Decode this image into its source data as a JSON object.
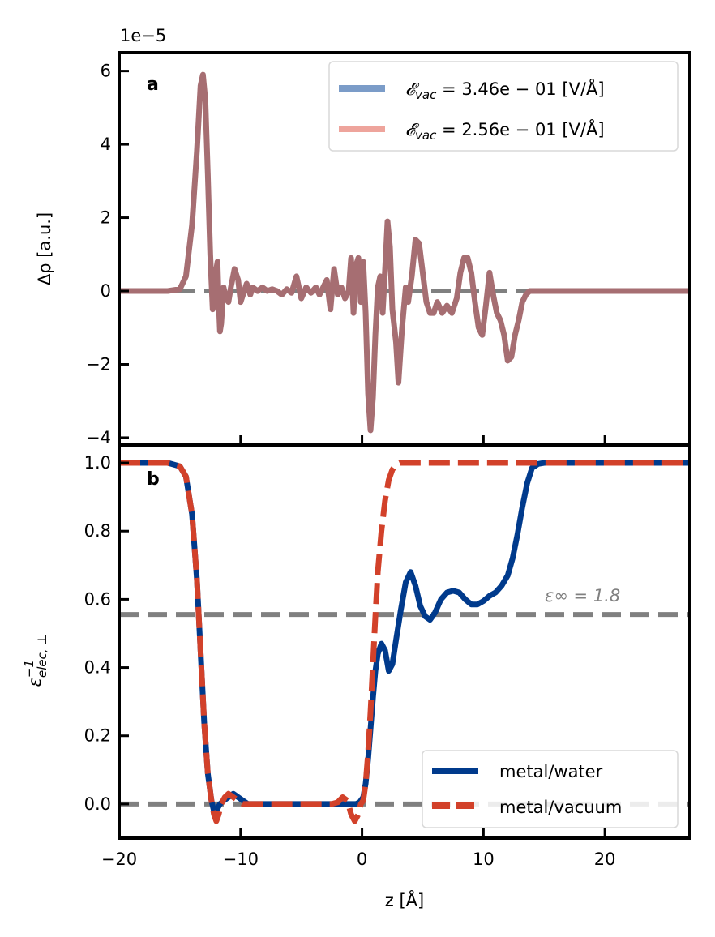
{
  "chart_data": [
    {
      "panel": "a",
      "type": "line",
      "offset_label": "1e−5",
      "xlim": [
        -20,
        27
      ],
      "ylim": [
        -4.2,
        6.5
      ],
      "yticks": [
        -4,
        -2,
        0,
        2,
        4,
        6
      ],
      "ytick_labels": [
        "−4",
        "−2",
        "0",
        "2",
        "4",
        "6"
      ],
      "xticks": [
        -10,
        0,
        10,
        20
      ],
      "ylabel": "Δρ [a.u.]",
      "legend_position": "top-right",
      "series": [
        {
          "name": "𝓔_vac = 3.46e − 01 [V/Å]",
          "color": "#7b9cc8",
          "x": [
            -20,
            -16,
            -15,
            -14.5,
            -14,
            -13.6,
            -13.3,
            -13.1,
            -12.9,
            -12.7,
            -12.5,
            -12.3,
            -12.1,
            -12.0,
            -11.9,
            -11.8,
            -11.7,
            -11.6,
            -11.4,
            -11.2,
            -11.0,
            -10.8,
            -10.5,
            -10.2,
            -10.0,
            -9.8,
            -9.5,
            -9.2,
            -9.0,
            -8.6,
            -8.2,
            -7.8,
            -7.4,
            -7.0,
            -6.6,
            -6.2,
            -5.8,
            -5.4,
            -5.0,
            -4.6,
            -4.2,
            -3.8,
            -3.5,
            -3.2,
            -2.9,
            -2.6,
            -2.3,
            -2.0,
            -1.7,
            -1.4,
            -1.1,
            -0.9,
            -0.7,
            -0.5,
            -0.3,
            -0.1,
            0.1,
            0.3,
            0.5,
            0.7,
            0.9,
            1.1,
            1.3,
            1.5,
            1.7,
            1.9,
            2.1,
            2.3,
            2.5,
            2.8,
            3.0,
            3.3,
            3.6,
            3.8,
            4.1,
            4.4,
            4.7,
            5.0,
            5.3,
            5.6,
            5.9,
            6.2,
            6.6,
            7.0,
            7.4,
            7.8,
            8.1,
            8.4,
            8.7,
            9.0,
            9.3,
            9.6,
            9.9,
            10.2,
            10.5,
            10.8,
            11.1,
            11.4,
            11.7,
            12.0,
            12.3,
            12.6,
            12.9,
            13.2,
            13.5,
            13.8,
            14.2,
            14.7,
            15.3,
            16,
            27
          ],
          "y": [
            0,
            0,
            0.05,
            0.4,
            1.8,
            3.8,
            5.6,
            5.9,
            5.2,
            3.2,
            1.0,
            -0.5,
            -0.2,
            0.6,
            0.8,
            -0.3,
            -1.1,
            -0.9,
            0.1,
            -0.2,
            -0.3,
            0.1,
            0.6,
            0.3,
            -0.3,
            -0.1,
            0.2,
            -0.1,
            0.1,
            0.0,
            0.1,
            0.0,
            0.05,
            0.0,
            -0.1,
            0.05,
            -0.05,
            0.4,
            -0.2,
            0.1,
            -0.05,
            0.1,
            -0.1,
            0.1,
            0.3,
            -0.5,
            0.6,
            -0.1,
            0.1,
            -0.2,
            0.0,
            0.9,
            -0.6,
            0.7,
            0.9,
            -0.3,
            0.8,
            -0.6,
            -2.8,
            -3.8,
            -2.9,
            -1.2,
            0.1,
            0.4,
            -0.6,
            0.6,
            1.9,
            1.2,
            -0.5,
            -1.4,
            -2.5,
            -1.0,
            0.1,
            -0.3,
            0.4,
            1.4,
            1.3,
            0.5,
            -0.3,
            -0.6,
            -0.6,
            -0.3,
            -0.6,
            -0.4,
            -0.6,
            -0.2,
            0.5,
            0.9,
            0.9,
            0.5,
            -0.3,
            -1.0,
            -1.2,
            -0.4,
            0.5,
            -0.1,
            -0.6,
            -0.8,
            -1.2,
            -1.9,
            -1.8,
            -1.2,
            -0.8,
            -0.3,
            -0.1,
            0.0,
            0.0,
            0.0,
            0.0,
            0.0,
            0.0
          ]
        },
        {
          "name": "𝓔_vac = 2.56e − 01 [V/Å]",
          "color": "#eea49c",
          "x": [
            -20,
            -16,
            -15,
            -14.5,
            -14,
            -13.6,
            -13.3,
            -13.1,
            -12.9,
            -12.7,
            -12.5,
            -12.3,
            -12.1,
            -12.0,
            -11.9,
            -11.8,
            -11.7,
            -11.6,
            -11.4,
            -11.2,
            -11.0,
            -10.8,
            -10.5,
            -10.2,
            -10.0,
            -9.8,
            -9.5,
            -9.2,
            -9.0,
            -8.6,
            -8.2,
            -7.8,
            -7.4,
            -7.0,
            -6.6,
            -6.2,
            -5.8,
            -5.4,
            -5.0,
            -4.6,
            -4.2,
            -3.8,
            -3.5,
            -3.2,
            -2.9,
            -2.6,
            -2.3,
            -2.0,
            -1.7,
            -1.4,
            -1.1,
            -0.9,
            -0.7,
            -0.5,
            -0.3,
            -0.1,
            0.1,
            0.3,
            0.5,
            0.7,
            0.9,
            1.1,
            1.3,
            1.5,
            1.7,
            1.9,
            2.1,
            2.3,
            2.5,
            2.8,
            3.0,
            3.3,
            3.6,
            3.8,
            4.1,
            4.4,
            4.7,
            5.0,
            5.3,
            5.6,
            5.9,
            6.2,
            6.6,
            7.0,
            7.4,
            7.8,
            8.1,
            8.4,
            8.7,
            9.0,
            9.3,
            9.6,
            9.9,
            10.2,
            10.5,
            10.8,
            11.1,
            11.4,
            11.7,
            12.0,
            12.3,
            12.6,
            12.9,
            13.2,
            13.5,
            13.8,
            14.2,
            14.7,
            15.3,
            16,
            27
          ],
          "y": [
            0,
            0,
            0.05,
            0.4,
            1.8,
            3.8,
            5.6,
            5.9,
            5.2,
            3.2,
            1.0,
            -0.5,
            -0.2,
            0.6,
            0.8,
            -0.3,
            -1.1,
            -0.9,
            0.1,
            -0.2,
            -0.3,
            0.1,
            0.6,
            0.3,
            -0.3,
            -0.1,
            0.2,
            -0.1,
            0.1,
            0.0,
            0.1,
            0.0,
            0.05,
            0.0,
            -0.1,
            0.05,
            -0.05,
            0.4,
            -0.2,
            0.1,
            -0.05,
            0.1,
            -0.1,
            0.1,
            0.3,
            -0.5,
            0.6,
            -0.1,
            0.1,
            -0.2,
            0.0,
            0.9,
            -0.6,
            0.7,
            0.9,
            -0.3,
            0.8,
            -0.6,
            -2.8,
            -3.8,
            -2.9,
            -1.2,
            0.1,
            0.4,
            -0.6,
            0.6,
            1.9,
            1.2,
            -0.5,
            -1.4,
            -2.5,
            -1.0,
            0.1,
            -0.3,
            0.4,
            1.4,
            1.3,
            0.5,
            -0.3,
            -0.6,
            -0.6,
            -0.3,
            -0.6,
            -0.4,
            -0.6,
            -0.2,
            0.5,
            0.9,
            0.9,
            0.5,
            -0.3,
            -1.0,
            -1.2,
            -0.4,
            0.5,
            -0.1,
            -0.6,
            -0.8,
            -1.2,
            -1.9,
            -1.8,
            -1.2,
            -0.8,
            -0.3,
            -0.1,
            0.0,
            0.0,
            0.0,
            0.0,
            0.0,
            0.0
          ]
        }
      ],
      "overlap_color": "#a66e72",
      "reference_lines": [
        {
          "y": 0,
          "color": "#808080",
          "style": "dashed"
        }
      ]
    },
    {
      "panel": "b",
      "type": "line",
      "xlim": [
        -20,
        27
      ],
      "ylim": [
        -0.1,
        1.05
      ],
      "yticks": [
        0.0,
        0.2,
        0.4,
        0.6,
        0.8,
        1.0
      ],
      "ytick_labels": [
        "0.0",
        "0.2",
        "0.4",
        "0.6",
        "0.8",
        "1.0"
      ],
      "xticks": [
        -20,
        -10,
        0,
        10,
        20
      ],
      "xtick_labels": [
        "−20",
        "−10",
        "0",
        "10",
        "20"
      ],
      "xlabel": "z [Å]",
      "ylabel": "ε",
      "ylabel_super": "−1",
      "ylabel_sub": "elec, ⊥",
      "legend_position": "bottom-right",
      "series": [
        {
          "name": "metal/water",
          "color": "#003a8c",
          "style": "solid",
          "x": [
            -20,
            -16,
            -15,
            -14.5,
            -14.0,
            -13.6,
            -13.3,
            -13.0,
            -12.7,
            -12.4,
            -12.2,
            -12.0,
            -11.7,
            -11.4,
            -11.0,
            -10.6,
            -10.2,
            -9.8,
            -9.4,
            -9.0,
            -8,
            -6,
            -4,
            -2,
            -1.4,
            -1.1,
            -0.8,
            -0.5,
            -0.2,
            0.1,
            0.3,
            0.5,
            0.7,
            0.9,
            1.1,
            1.3,
            1.6,
            1.9,
            2.2,
            2.5,
            2.8,
            3.2,
            3.6,
            4.0,
            4.4,
            4.8,
            5.2,
            5.6,
            6.0,
            6.5,
            7.0,
            7.5,
            8.0,
            8.5,
            9.0,
            9.5,
            10.0,
            10.5,
            11.0,
            11.5,
            12.0,
            12.4,
            12.8,
            13.2,
            13.6,
            14.0,
            14.5,
            15.0,
            16.0,
            18,
            20,
            27
          ],
          "y": [
            1.0,
            1.0,
            0.99,
            0.96,
            0.85,
            0.66,
            0.45,
            0.24,
            0.09,
            0.01,
            -0.02,
            -0.02,
            0.0,
            0.01,
            0.02,
            0.03,
            0.02,
            0.01,
            0.0,
            0.0,
            0.0,
            0.0,
            0.0,
            0.0,
            0.0,
            0.0,
            0.0,
            0.0,
            0.005,
            0.02,
            0.06,
            0.13,
            0.22,
            0.31,
            0.39,
            0.44,
            0.47,
            0.45,
            0.39,
            0.41,
            0.48,
            0.57,
            0.65,
            0.68,
            0.64,
            0.58,
            0.55,
            0.54,
            0.56,
            0.6,
            0.62,
            0.625,
            0.62,
            0.6,
            0.585,
            0.585,
            0.595,
            0.61,
            0.62,
            0.64,
            0.67,
            0.72,
            0.79,
            0.87,
            0.94,
            0.985,
            0.997,
            1.0,
            1.0,
            1.0,
            1.0,
            1.0
          ]
        },
        {
          "name": "metal/vacuum",
          "color": "#d2412a",
          "style": "dashed",
          "x": [
            -20,
            -16,
            -15,
            -14.5,
            -14.0,
            -13.6,
            -13.3,
            -13.0,
            -12.7,
            -12.4,
            -12.2,
            -12.0,
            -11.8,
            -11.6,
            -11.3,
            -11.0,
            -10.6,
            -10.2,
            -9.8,
            -9.4,
            -9.0,
            -8,
            -6,
            -4,
            -2.5,
            -2.0,
            -1.6,
            -1.2,
            -0.9,
            -0.6,
            -0.3,
            -0.1,
            0.1,
            0.3,
            0.5,
            0.7,
            0.9,
            1.1,
            1.3,
            1.6,
            1.9,
            2.2,
            2.5,
            2.8,
            3.1,
            3.5,
            4.0,
            5.0,
            8,
            12,
            16,
            20,
            27
          ],
          "y": [
            1.0,
            1.0,
            0.99,
            0.96,
            0.85,
            0.66,
            0.45,
            0.24,
            0.09,
            0.01,
            -0.03,
            -0.05,
            -0.03,
            0.0,
            0.02,
            0.03,
            0.02,
            0.01,
            0.0,
            0.0,
            0.0,
            0.0,
            0.0,
            0.0,
            0.0,
            0.005,
            0.02,
            0.01,
            -0.03,
            -0.05,
            -0.03,
            0.0,
            0.01,
            0.06,
            0.15,
            0.27,
            0.41,
            0.55,
            0.68,
            0.8,
            0.89,
            0.95,
            0.98,
            0.995,
            1.0,
            1.0,
            1.0,
            1.0,
            1.0,
            1.0,
            1.0,
            1.0,
            1.0
          ]
        }
      ],
      "reference_lines": [
        {
          "y": 0.0,
          "color": "#808080",
          "style": "dashed"
        },
        {
          "y": 0.5556,
          "color": "#808080",
          "style": "dashed",
          "label": "ε∞ = 1.8"
        }
      ]
    }
  ],
  "labels": {
    "panel_a": "a",
    "panel_b": "b",
    "offset": "1e−5",
    "ylabel_a": "Δρ [a.u.]",
    "xlabel": "z [Å]",
    "eps_inf": "ε∞ = 1.8",
    "legend_a": [
      {
        "prefix": "𝓔",
        "sub": "vac",
        "value": " = 3.46e − 01 [V/Å]"
      },
      {
        "prefix": "𝓔",
        "sub": "vac",
        "value": " = 2.56e − 01 [V/Å]"
      }
    ],
    "legend_b": [
      "metal/water",
      "metal/vacuum"
    ]
  }
}
